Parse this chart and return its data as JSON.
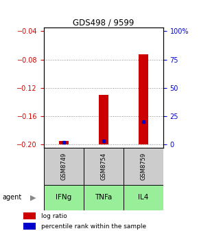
{
  "title": "GDS498 / 9599",
  "samples": [
    "GSM8749",
    "GSM8754",
    "GSM8759"
  ],
  "agents": [
    "IFNg",
    "TNFa",
    "IL4"
  ],
  "log_ratios": [
    -0.195,
    -0.13,
    -0.073
  ],
  "percentile_ranks": [
    2.0,
    3.0,
    20.0
  ],
  "bar_bottom": -0.2,
  "ylim": [
    -0.205,
    -0.035
  ],
  "yticks_left": [
    -0.2,
    -0.16,
    -0.12,
    -0.08,
    -0.04
  ],
  "yticks_right": [
    0,
    25,
    50,
    75,
    100
  ],
  "bar_color": "#cc0000",
  "percentile_color": "#0000cc",
  "sample_bg": "#cccccc",
  "agent_bg": "#99ee99",
  "left_tick_color": "#cc0000",
  "right_tick_color": "#0000cc",
  "grid_color": "#888888"
}
